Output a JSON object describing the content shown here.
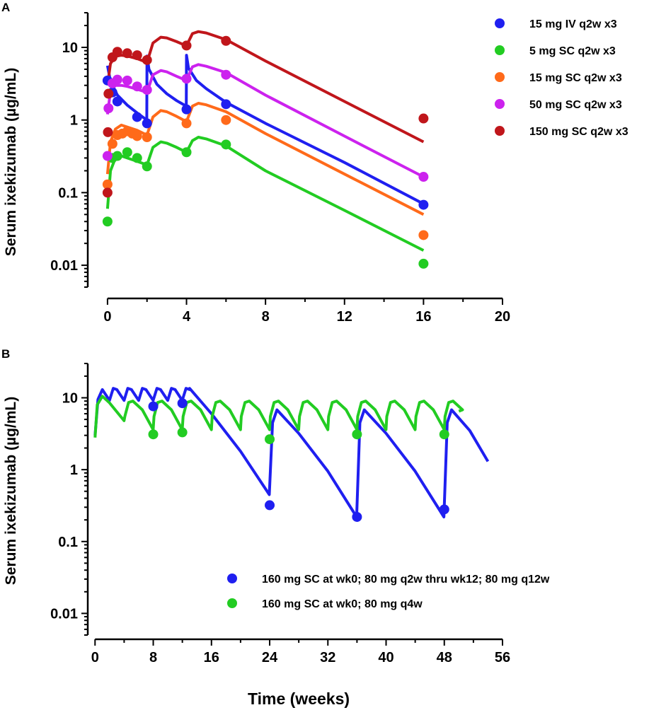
{
  "figure": {
    "xlabel": "Time (weeks)"
  },
  "chart_data": [
    {
      "type": "line",
      "panel": "A",
      "ylabel": "Serum ixekizumab (µg/mL)",
      "yscale": "log",
      "ylim": [
        0.005,
        30
      ],
      "xlim": [
        -1,
        20
      ],
      "xticks": [
        0,
        4,
        8,
        12,
        16,
        20
      ],
      "yticks": [
        0.01,
        0.1,
        1,
        10
      ],
      "ytick_labels": [
        "0.01",
        "0.1",
        "1",
        "10"
      ],
      "legend_position": "top-right",
      "series": [
        {
          "name": "15 mg IV q2w x3",
          "color": "#1f1ff0",
          "line": [
            [
              0,
              5.6
            ],
            [
              0.15,
              3.4
            ],
            [
              0.5,
              2.2
            ],
            [
              1,
              1.6
            ],
            [
              1.5,
              1.25
            ],
            [
              1.99,
              1.0
            ],
            [
              2,
              7.6
            ],
            [
              2.1,
              5.0
            ],
            [
              2.5,
              3.1
            ],
            [
              3,
              2.3
            ],
            [
              3.5,
              1.85
            ],
            [
              3.99,
              1.55
            ],
            [
              4,
              7.8
            ],
            [
              4.1,
              5.2
            ],
            [
              4.5,
              3.5
            ],
            [
              5,
              2.7
            ],
            [
              6,
              1.75
            ],
            [
              8,
              0.9
            ],
            [
              12,
              0.26
            ],
            [
              16,
              0.07
            ]
          ],
          "points": [
            [
              0,
              3.5
            ],
            [
              0.25,
              2.4
            ],
            [
              0.5,
              1.8
            ],
            [
              1.5,
              1.1
            ],
            [
              2,
              0.9
            ],
            [
              4,
              1.4
            ],
            [
              6,
              1.65
            ],
            [
              16,
              0.068
            ]
          ]
        },
        {
          "name": "5 mg SC q2w x3",
          "color": "#22cc22",
          "line": [
            [
              0,
              0.06
            ],
            [
              0.15,
              0.2
            ],
            [
              0.4,
              0.3
            ],
            [
              0.7,
              0.32
            ],
            [
              1,
              0.3
            ],
            [
              1.5,
              0.27
            ],
            [
              2,
              0.24
            ],
            [
              2.3,
              0.42
            ],
            [
              2.7,
              0.5
            ],
            [
              3,
              0.48
            ],
            [
              3.5,
              0.42
            ],
            [
              4,
              0.36
            ],
            [
              4.3,
              0.52
            ],
            [
              4.6,
              0.58
            ],
            [
              5,
              0.55
            ],
            [
              6,
              0.44
            ],
            [
              8,
              0.2
            ],
            [
              12,
              0.057
            ],
            [
              16,
              0.016
            ]
          ],
          "points": [
            [
              0,
              0.04
            ],
            [
              0.25,
              0.3
            ],
            [
              0.5,
              0.32
            ],
            [
              1,
              0.36
            ],
            [
              1.5,
              0.3
            ],
            [
              2,
              0.23
            ],
            [
              4,
              0.36
            ],
            [
              6,
              0.46
            ],
            [
              16,
              0.0105
            ]
          ]
        },
        {
          "name": "15 mg SC q2w x3",
          "color": "#ff6a1a",
          "line": [
            [
              0,
              0.18
            ],
            [
              0.15,
              0.5
            ],
            [
              0.4,
              0.75
            ],
            [
              0.7,
              0.85
            ],
            [
              1,
              0.8
            ],
            [
              1.5,
              0.72
            ],
            [
              2,
              0.62
            ],
            [
              2.3,
              1.1
            ],
            [
              2.7,
              1.35
            ],
            [
              3,
              1.3
            ],
            [
              3.5,
              1.12
            ],
            [
              4,
              0.95
            ],
            [
              4.3,
              1.55
            ],
            [
              4.6,
              1.7
            ],
            [
              5,
              1.62
            ],
            [
              6,
              1.3
            ],
            [
              8,
              0.65
            ],
            [
              12,
              0.18
            ],
            [
              16,
              0.05
            ]
          ],
          "points": [
            [
              0,
              0.13
            ],
            [
              0.25,
              0.47
            ],
            [
              0.5,
              0.62
            ],
            [
              0.75,
              0.65
            ],
            [
              1,
              0.7
            ],
            [
              1.25,
              0.65
            ],
            [
              1.5,
              0.6
            ],
            [
              2,
              0.58
            ],
            [
              4,
              0.9
            ],
            [
              6,
              1.0
            ],
            [
              16,
              0.026
            ]
          ]
        },
        {
          "name": "50 mg SC q2w x3",
          "color": "#cc22ee",
          "line": [
            [
              0,
              1.2
            ],
            [
              0.15,
              2.5
            ],
            [
              0.4,
              3.0
            ],
            [
              0.7,
              3.0
            ],
            [
              1,
              2.9
            ],
            [
              1.5,
              2.65
            ],
            [
              2,
              2.4
            ],
            [
              2.3,
              4.2
            ],
            [
              2.7,
              4.8
            ],
            [
              3,
              4.6
            ],
            [
              3.5,
              4.0
            ],
            [
              4,
              3.5
            ],
            [
              4.3,
              5.4
            ],
            [
              4.6,
              5.8
            ],
            [
              5,
              5.5
            ],
            [
              6,
              4.5
            ],
            [
              8,
              2.2
            ],
            [
              12,
              0.6
            ],
            [
              16,
              0.165
            ]
          ],
          "points": [
            [
              0,
              0.32
            ],
            [
              0.05,
              1.45
            ],
            [
              0.25,
              3.2
            ],
            [
              0.5,
              3.6
            ],
            [
              1,
              3.5
            ],
            [
              1.5,
              2.9
            ],
            [
              2,
              2.6
            ],
            [
              4,
              3.7
            ],
            [
              6,
              4.2
            ],
            [
              16,
              0.165
            ]
          ]
        },
        {
          "name": "150 mg SC q2w x3",
          "color": "#c0161b",
          "line": [
            [
              0,
              3.0
            ],
            [
              0.15,
              6.0
            ],
            [
              0.4,
              7.5
            ],
            [
              0.7,
              7.8
            ],
            [
              1,
              7.6
            ],
            [
              1.5,
              7.0
            ],
            [
              2,
              6.2
            ],
            [
              2.3,
              11.5
            ],
            [
              2.7,
              13.8
            ],
            [
              3,
              13.5
            ],
            [
              3.5,
              12.0
            ],
            [
              4,
              10.5
            ],
            [
              4.3,
              15.5
            ],
            [
              4.6,
              16.5
            ],
            [
              5,
              15.8
            ],
            [
              6,
              12.8
            ],
            [
              8,
              6.5
            ],
            [
              12,
              1.8
            ],
            [
              16,
              0.5
            ]
          ],
          "points": [
            [
              0,
              0.1
            ],
            [
              0.02,
              0.68
            ],
            [
              0.05,
              2.3
            ],
            [
              0.25,
              7.3
            ],
            [
              0.5,
              8.7
            ],
            [
              1,
              8.3
            ],
            [
              1.5,
              7.8
            ],
            [
              2,
              6.7
            ],
            [
              4,
              10.6
            ],
            [
              6,
              12.3
            ],
            [
              16,
              1.05
            ]
          ]
        }
      ]
    },
    {
      "type": "line",
      "panel": "B",
      "ylabel": "Serum ixekizumab (µg/mL)",
      "yscale": "log",
      "ylim": [
        0.005,
        30
      ],
      "xlim": [
        -1,
        56
      ],
      "xticks": [
        0,
        8,
        16,
        24,
        32,
        40,
        48,
        56
      ],
      "yticks": [
        0.01,
        0.1,
        1,
        10
      ],
      "ytick_labels": [
        "0.01",
        "0.1",
        "1",
        "10"
      ],
      "legend_position": "bottom-right",
      "series": [
        {
          "name": "160 mg SC at wk0; 80 mg q2w thru wk12; 80 mg q12w",
          "color": "#1f1ff0",
          "points": [
            [
              8,
              7.6
            ],
            [
              12,
              8.4
            ],
            [
              24,
              0.32
            ],
            [
              36,
              0.22
            ],
            [
              48,
              0.28
            ]
          ]
        },
        {
          "name": "160 mg SC at wk0; 80 mg q4w",
          "color": "#22cc22",
          "points": [
            [
              8,
              3.1
            ],
            [
              12,
              3.3
            ],
            [
              24,
              2.65
            ],
            [
              36,
              3.1
            ],
            [
              48,
              3.1
            ]
          ]
        }
      ]
    }
  ]
}
